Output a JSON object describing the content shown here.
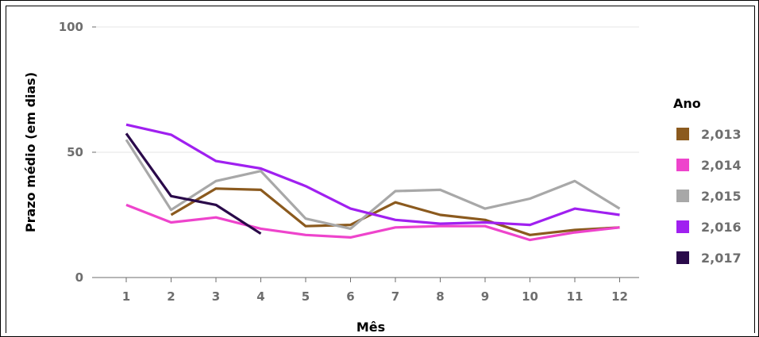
{
  "chart_data": {
    "type": "line",
    "xlabel": "Mês",
    "ylabel": "Prazo médio (em dias)",
    "categories": [
      "1",
      "2",
      "3",
      "4",
      "5",
      "6",
      "7",
      "8",
      "9",
      "10",
      "11",
      "12"
    ],
    "ylim": [
      0,
      100
    ],
    "yticks": [
      "0",
      "50",
      "100"
    ],
    "grid": true,
    "legend_title": "Ano",
    "legend_position": "right",
    "series": [
      {
        "name": "2,013",
        "color": "#8b5a1e",
        "values": [
          null,
          25,
          35.5,
          35,
          20.5,
          21,
          30,
          25,
          23,
          17,
          19,
          20
        ]
      },
      {
        "name": "2,014",
        "color": "#ee44cc",
        "values": [
          29,
          22,
          24,
          19.5,
          17,
          16,
          20,
          20.5,
          20.5,
          15,
          18,
          20
        ]
      },
      {
        "name": "2,015",
        "color": "#a8a8a8",
        "values": [
          55,
          27,
          38.5,
          42.5,
          23.5,
          19.5,
          34.5,
          35,
          27.5,
          31.5,
          38.5,
          27.5
        ]
      },
      {
        "name": "2,016",
        "color": "#a020f0",
        "values": [
          61,
          57,
          46.5,
          43.5,
          36.5,
          27.5,
          23,
          21.5,
          22,
          21,
          27.5,
          25
        ]
      },
      {
        "name": "2,017",
        "color": "#2a0a4a",
        "values": [
          57.5,
          32.5,
          29,
          17.5,
          null,
          null,
          null,
          null,
          null,
          null,
          null,
          null
        ]
      }
    ]
  }
}
